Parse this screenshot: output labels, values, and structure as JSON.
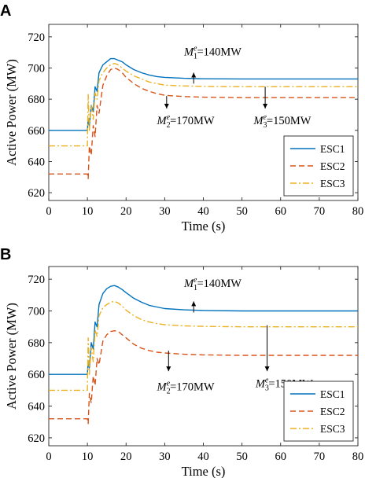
{
  "chart_data": [
    {
      "panel": "A",
      "type": "line",
      "xlabel": "Time (s)",
      "ylabel": "Active Power (MW)",
      "xlim": [
        0,
        80
      ],
      "ylim": [
        615,
        728
      ],
      "xticks": [
        0,
        10,
        20,
        30,
        40,
        50,
        60,
        70,
        80
      ],
      "yticks": [
        620,
        640,
        660,
        680,
        700,
        720
      ],
      "grid": false,
      "legend_position": "bottom-right",
      "series": [
        {
          "name": "ESC1",
          "color": "#0072BD",
          "dash": "solid",
          "x": [
            0,
            10,
            10.2,
            10.5,
            11,
            11.5,
            12,
            12.5,
            13,
            14,
            15,
            16,
            17,
            18,
            19,
            20,
            22,
            24,
            26,
            28,
            30,
            35,
            40,
            50,
            60,
            70,
            80
          ],
          "y": [
            660,
            660,
            667,
            663,
            676,
            672,
            688,
            685,
            697,
            702,
            704,
            706,
            706,
            705,
            704,
            702,
            699,
            697,
            695.5,
            694.5,
            694,
            693.4,
            693.1,
            693,
            693,
            693,
            693
          ]
        },
        {
          "name": "ESC2",
          "color": "#D95319",
          "dash": "dashed",
          "x": [
            0,
            10,
            10.2,
            10.5,
            11,
            11.5,
            12,
            12.5,
            13,
            14,
            15,
            16,
            17,
            18,
            19,
            20,
            22,
            24,
            26,
            28,
            30,
            35,
            40,
            50,
            60,
            70,
            80
          ],
          "y": [
            632,
            632,
            629,
            650,
            644,
            663,
            656,
            676,
            671,
            689,
            695,
            699,
            700,
            699,
            697,
            694,
            690,
            687,
            685,
            683.5,
            682.5,
            681.7,
            681.3,
            681,
            681,
            681,
            681
          ]
        },
        {
          "name": "ESC3",
          "color": "#EDB120",
          "dash": "dashdot",
          "x": [
            0,
            10,
            10.2,
            10.5,
            11,
            11.5,
            12,
            12.5,
            13,
            14,
            15,
            16,
            17,
            18,
            19,
            20,
            22,
            24,
            26,
            28,
            30,
            35,
            40,
            50,
            60,
            70,
            80
          ],
          "y": [
            650,
            650,
            683,
            660,
            676,
            667,
            684,
            680,
            692,
            697,
            700,
            702,
            703,
            702,
            700,
            698,
            695,
            693,
            691,
            690,
            689,
            688.5,
            688.2,
            688,
            688,
            688,
            688
          ]
        }
      ],
      "annotations": [
        {
          "label": "M",
          "sub": "1",
          "sup": "e",
          "value": "=140MW",
          "arrow_x": 37.5,
          "arrow_y_from": 690,
          "arrow_y_to": 697,
          "text_x": 35,
          "text_y": 708
        },
        {
          "label": "M",
          "sub": "2",
          "sup": "e",
          "value": "=170MW",
          "arrow_x": 30.5,
          "arrow_y_from": 682,
          "arrow_y_to": 674,
          "text_x": 28,
          "text_y": 664
        },
        {
          "label": "M",
          "sub": "3",
          "sup": "e",
          "value": "=150MW",
          "arrow_x": 56,
          "arrow_y_from": 688,
          "arrow_y_to": 674,
          "text_x": 53,
          "text_y": 664
        }
      ]
    },
    {
      "panel": "B",
      "type": "line",
      "xlabel": "Time (s)",
      "ylabel": "Active Power (MW)",
      "xlim": [
        0,
        80
      ],
      "ylim": [
        615,
        728
      ],
      "xticks": [
        0,
        10,
        20,
        30,
        40,
        50,
        60,
        70,
        80
      ],
      "yticks": [
        620,
        640,
        660,
        680,
        700,
        720
      ],
      "grid": false,
      "legend_position": "bottom-right",
      "series": [
        {
          "name": "ESC1",
          "color": "#0072BD",
          "dash": "solid",
          "x": [
            0,
            10,
            10.2,
            10.5,
            11,
            11.5,
            12,
            12.5,
            13,
            14,
            15,
            16,
            17,
            18,
            19,
            20,
            22,
            24,
            26,
            28,
            30,
            35,
            40,
            50,
            60,
            70,
            80
          ],
          "y": [
            660,
            660,
            668,
            664,
            680,
            676,
            693,
            690,
            704,
            711,
            714,
            715.5,
            716,
            715,
            713.5,
            711.5,
            708,
            705.5,
            703.5,
            702.5,
            701.5,
            700.7,
            700.3,
            700,
            700,
            700,
            700
          ]
        },
        {
          "name": "ESC2",
          "color": "#D95319",
          "dash": "dashed",
          "x": [
            0,
            10,
            10.2,
            10.5,
            11,
            11.5,
            12,
            12.5,
            13,
            14,
            15,
            16,
            17,
            18,
            19,
            20,
            22,
            24,
            26,
            28,
            30,
            35,
            40,
            50,
            60,
            70,
            80
          ],
          "y": [
            632,
            632,
            629,
            648,
            642,
            659,
            653,
            670,
            666,
            681,
            685,
            687,
            687.5,
            687,
            685,
            683,
            679,
            676.5,
            675,
            674,
            673.5,
            672.7,
            672.3,
            672,
            672,
            672,
            672
          ]
        },
        {
          "name": "ESC3",
          "color": "#EDB120",
          "dash": "dashdot",
          "x": [
            0,
            10,
            10.2,
            10.5,
            11,
            11.5,
            12,
            12.5,
            13,
            14,
            15,
            16,
            17,
            18,
            19,
            20,
            22,
            24,
            26,
            28,
            30,
            35,
            40,
            50,
            60,
            70,
            80
          ],
          "y": [
            650,
            650,
            683,
            660,
            677,
            668,
            688,
            684,
            697,
            702,
            704,
            705.5,
            706,
            705,
            703,
            700.5,
            697,
            694.5,
            693,
            692,
            691.3,
            690.6,
            690.3,
            690,
            690,
            690,
            690
          ]
        }
      ],
      "annotations": [
        {
          "label": "M",
          "sub": "1",
          "sup": "e",
          "value": "=140MW",
          "arrow_x": 37.5,
          "arrow_y_from": 699,
          "arrow_y_to": 706,
          "text_x": 35,
          "text_y": 715
        },
        {
          "label": "M",
          "sub": "2",
          "sup": "e",
          "value": "=170MW",
          "arrow_x": 31,
          "arrow_y_from": 675,
          "arrow_y_to": 662,
          "text_x": 28,
          "text_y": 650
        },
        {
          "label": "M",
          "sub": "3",
          "sup": "e",
          "value": "=150MW",
          "arrow_x": 56.5,
          "arrow_y_from": 691,
          "arrow_y_to": 662,
          "text_x": 53.5,
          "text_y": 652
        }
      ]
    }
  ]
}
